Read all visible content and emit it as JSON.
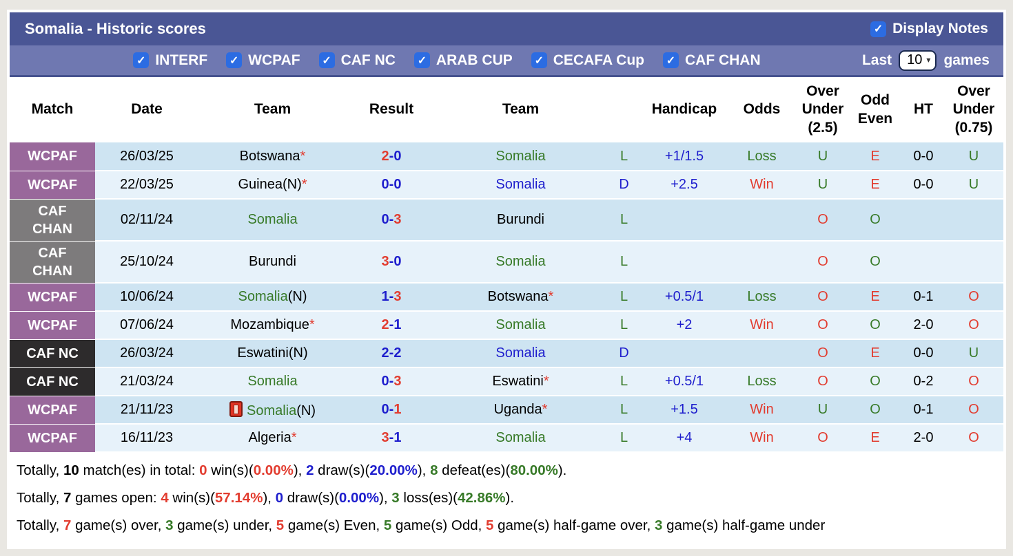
{
  "header": {
    "title": "Somalia - Historic scores",
    "display_notes_label": "Display Notes"
  },
  "filters": {
    "competitions": [
      "INTERF",
      "WCPAF",
      "CAF NC",
      "ARAB CUP",
      "CECAFA Cup",
      "CAF CHAN"
    ],
    "all_checked": true,
    "last_label": "Last",
    "games_count": "10",
    "games_label": "games"
  },
  "icons": {
    "check": "✓",
    "chevron_down": "▾",
    "red_card": "red-card-icon",
    "star": "*"
  },
  "colors": {
    "red": "#e23c2f",
    "blue": "#1e1ecd",
    "green": "#377a28",
    "black": "#000000",
    "topbar": "#4a5695",
    "filterbar": "#6f78b1",
    "checkbox": "#2c6ce2",
    "row_dark": "#cee4f2",
    "row_light": "#e7f2fa"
  },
  "table": {
    "columns": [
      "Match",
      "Date",
      "Team",
      "Result",
      "Team",
      "",
      "Handicap",
      "Odds",
      "Over Under (2.5)",
      "Odd Even",
      "HT",
      "Over Under (0.75)"
    ],
    "badge_colors": {
      "WCPAF": "#99689b",
      "CAF CHAN": "#7d7b7c",
      "CAF NC": "#2d2b2c"
    },
    "rows": [
      {
        "comp": "WCPAF",
        "date": "26/03/25",
        "t1": {
          "name": "Botswana",
          "color": "black",
          "star": true
        },
        "res": {
          "h": "2",
          "hc": "red",
          "a": "0",
          "ac": "blue"
        },
        "t2": {
          "name": "Somalia",
          "color": "green"
        },
        "wdl": {
          "t": "L",
          "c": "green"
        },
        "hcap": "+1/1.5",
        "odds": {
          "t": "Loss",
          "c": "green"
        },
        "ou25": {
          "t": "U",
          "c": "green"
        },
        "oe": {
          "t": "E",
          "c": "red"
        },
        "ht": "0-0",
        "ou075": {
          "t": "U",
          "c": "green"
        }
      },
      {
        "comp": "WCPAF",
        "date": "22/03/25",
        "t1": {
          "name": "Guinea",
          "color": "black",
          "suffix": "(N)",
          "star": true
        },
        "res": {
          "h": "0",
          "hc": "blue",
          "a": "0",
          "ac": "blue"
        },
        "t2": {
          "name": "Somalia",
          "color": "blue"
        },
        "wdl": {
          "t": "D",
          "c": "blue"
        },
        "hcap": "+2.5",
        "odds": {
          "t": "Win",
          "c": "red"
        },
        "ou25": {
          "t": "U",
          "c": "green"
        },
        "oe": {
          "t": "E",
          "c": "red"
        },
        "ht": "0-0",
        "ou075": {
          "t": "U",
          "c": "green"
        }
      },
      {
        "comp": "CAF CHAN",
        "date": "02/11/24",
        "t1": {
          "name": "Somalia",
          "color": "green"
        },
        "res": {
          "h": "0",
          "hc": "blue",
          "a": "3",
          "ac": "red"
        },
        "t2": {
          "name": "Burundi",
          "color": "black"
        },
        "wdl": {
          "t": "L",
          "c": "green"
        },
        "hcap": "",
        "odds": {
          "t": "",
          "c": "black"
        },
        "ou25": {
          "t": "O",
          "c": "red"
        },
        "oe": {
          "t": "O",
          "c": "green"
        },
        "ht": "",
        "ou075": {
          "t": "",
          "c": "black"
        }
      },
      {
        "comp": "CAF CHAN",
        "date": "25/10/24",
        "t1": {
          "name": "Burundi",
          "color": "black"
        },
        "res": {
          "h": "3",
          "hc": "red",
          "a": "0",
          "ac": "blue"
        },
        "t2": {
          "name": "Somalia",
          "color": "green"
        },
        "wdl": {
          "t": "L",
          "c": "green"
        },
        "hcap": "",
        "odds": {
          "t": "",
          "c": "black"
        },
        "ou25": {
          "t": "O",
          "c": "red"
        },
        "oe": {
          "t": "O",
          "c": "green"
        },
        "ht": "",
        "ou075": {
          "t": "",
          "c": "black"
        }
      },
      {
        "comp": "WCPAF",
        "date": "10/06/24",
        "t1": {
          "name": "Somalia",
          "color": "green",
          "suffix": "(N)"
        },
        "res": {
          "h": "1",
          "hc": "blue",
          "a": "3",
          "ac": "red"
        },
        "t2": {
          "name": "Botswana",
          "color": "black",
          "star": true
        },
        "wdl": {
          "t": "L",
          "c": "green"
        },
        "hcap": "+0.5/1",
        "odds": {
          "t": "Loss",
          "c": "green"
        },
        "ou25": {
          "t": "O",
          "c": "red"
        },
        "oe": {
          "t": "E",
          "c": "red"
        },
        "ht": "0-1",
        "ou075": {
          "t": "O",
          "c": "red"
        }
      },
      {
        "comp": "WCPAF",
        "date": "07/06/24",
        "t1": {
          "name": "Mozambique",
          "color": "black",
          "star": true
        },
        "res": {
          "h": "2",
          "hc": "red",
          "a": "1",
          "ac": "blue"
        },
        "t2": {
          "name": "Somalia",
          "color": "green"
        },
        "wdl": {
          "t": "L",
          "c": "green"
        },
        "hcap": "+2",
        "odds": {
          "t": "Win",
          "c": "red"
        },
        "ou25": {
          "t": "O",
          "c": "red"
        },
        "oe": {
          "t": "O",
          "c": "green"
        },
        "ht": "2-0",
        "ou075": {
          "t": "O",
          "c": "red"
        }
      },
      {
        "comp": "CAF NC",
        "date": "26/03/24",
        "t1": {
          "name": "Eswatini",
          "color": "black",
          "suffix": "(N)"
        },
        "res": {
          "h": "2",
          "hc": "blue",
          "a": "2",
          "ac": "blue"
        },
        "t2": {
          "name": "Somalia",
          "color": "blue"
        },
        "wdl": {
          "t": "D",
          "c": "blue"
        },
        "hcap": "",
        "odds": {
          "t": "",
          "c": "black"
        },
        "ou25": {
          "t": "O",
          "c": "red"
        },
        "oe": {
          "t": "E",
          "c": "red"
        },
        "ht": "0-0",
        "ou075": {
          "t": "U",
          "c": "green"
        }
      },
      {
        "comp": "CAF NC",
        "date": "21/03/24",
        "t1": {
          "name": "Somalia",
          "color": "green"
        },
        "res": {
          "h": "0",
          "hc": "blue",
          "a": "3",
          "ac": "red"
        },
        "t2": {
          "name": "Eswatini",
          "color": "black",
          "star": true
        },
        "wdl": {
          "t": "L",
          "c": "green"
        },
        "hcap": "+0.5/1",
        "odds": {
          "t": "Loss",
          "c": "green"
        },
        "ou25": {
          "t": "O",
          "c": "red"
        },
        "oe": {
          "t": "O",
          "c": "green"
        },
        "ht": "0-2",
        "ou075": {
          "t": "O",
          "c": "red"
        }
      },
      {
        "comp": "WCPAF",
        "date": "21/11/23",
        "t1": {
          "red_card": true,
          "name": "Somalia",
          "color": "green",
          "suffix": "(N)"
        },
        "res": {
          "h": "0",
          "hc": "blue",
          "a": "1",
          "ac": "red"
        },
        "t2": {
          "name": "Uganda",
          "color": "black",
          "star": true
        },
        "wdl": {
          "t": "L",
          "c": "green"
        },
        "hcap": "+1.5",
        "odds": {
          "t": "Win",
          "c": "red"
        },
        "ou25": {
          "t": "U",
          "c": "green"
        },
        "oe": {
          "t": "O",
          "c": "green"
        },
        "ht": "0-1",
        "ou075": {
          "t": "O",
          "c": "red"
        }
      },
      {
        "comp": "WCPAF",
        "date": "16/11/23",
        "t1": {
          "name": "Algeria",
          "color": "black",
          "star": true
        },
        "res": {
          "h": "3",
          "hc": "red",
          "a": "1",
          "ac": "blue"
        },
        "t2": {
          "name": "Somalia",
          "color": "green"
        },
        "wdl": {
          "t": "L",
          "c": "green"
        },
        "hcap": "+4",
        "odds": {
          "t": "Win",
          "c": "red"
        },
        "ou25": {
          "t": "O",
          "c": "red"
        },
        "oe": {
          "t": "E",
          "c": "red"
        },
        "ht": "2-0",
        "ou075": {
          "t": "O",
          "c": "red"
        }
      }
    ]
  },
  "summary": {
    "lines": [
      [
        {
          "t": "Totally, ",
          "c": "black"
        },
        {
          "t": "10",
          "c": "black",
          "b": true
        },
        {
          "t": " match(es) in total: ",
          "c": "black"
        },
        {
          "t": "0",
          "c": "red",
          "b": true
        },
        {
          "t": " win(s)(",
          "c": "black"
        },
        {
          "t": "0.00%",
          "c": "red",
          "b": true
        },
        {
          "t": "), ",
          "c": "black"
        },
        {
          "t": "2",
          "c": "blue",
          "b": true
        },
        {
          "t": " draw(s)(",
          "c": "black"
        },
        {
          "t": "20.00%",
          "c": "blue",
          "b": true
        },
        {
          "t": "), ",
          "c": "black"
        },
        {
          "t": "8",
          "c": "green",
          "b": true
        },
        {
          "t": " defeat(es)(",
          "c": "black"
        },
        {
          "t": "80.00%",
          "c": "green",
          "b": true
        },
        {
          "t": ").",
          "c": "black"
        }
      ],
      [
        {
          "t": "Totally, ",
          "c": "black"
        },
        {
          "t": "7",
          "c": "black",
          "b": true
        },
        {
          "t": " games open: ",
          "c": "black"
        },
        {
          "t": "4",
          "c": "red",
          "b": true
        },
        {
          "t": " win(s)(",
          "c": "black"
        },
        {
          "t": "57.14%",
          "c": "red",
          "b": true
        },
        {
          "t": "), ",
          "c": "black"
        },
        {
          "t": "0",
          "c": "blue",
          "b": true
        },
        {
          "t": " draw(s)(",
          "c": "black"
        },
        {
          "t": "0.00%",
          "c": "blue",
          "b": true
        },
        {
          "t": "), ",
          "c": "black"
        },
        {
          "t": "3",
          "c": "green",
          "b": true
        },
        {
          "t": " loss(es)(",
          "c": "black"
        },
        {
          "t": "42.86%",
          "c": "green",
          "b": true
        },
        {
          "t": ").",
          "c": "black"
        }
      ],
      [
        {
          "t": "Totally, ",
          "c": "black"
        },
        {
          "t": "7",
          "c": "red",
          "b": true
        },
        {
          "t": " game(s) over, ",
          "c": "black"
        },
        {
          "t": "3",
          "c": "green",
          "b": true
        },
        {
          "t": " game(s) under, ",
          "c": "black"
        },
        {
          "t": "5",
          "c": "red",
          "b": true
        },
        {
          "t": " game(s) Even, ",
          "c": "black"
        },
        {
          "t": "5",
          "c": "green",
          "b": true
        },
        {
          "t": " game(s) Odd, ",
          "c": "black"
        },
        {
          "t": "5",
          "c": "red",
          "b": true
        },
        {
          "t": " game(s) half-game over, ",
          "c": "black"
        },
        {
          "t": "3",
          "c": "green",
          "b": true
        },
        {
          "t": " game(s) half-game under",
          "c": "black"
        }
      ]
    ]
  }
}
